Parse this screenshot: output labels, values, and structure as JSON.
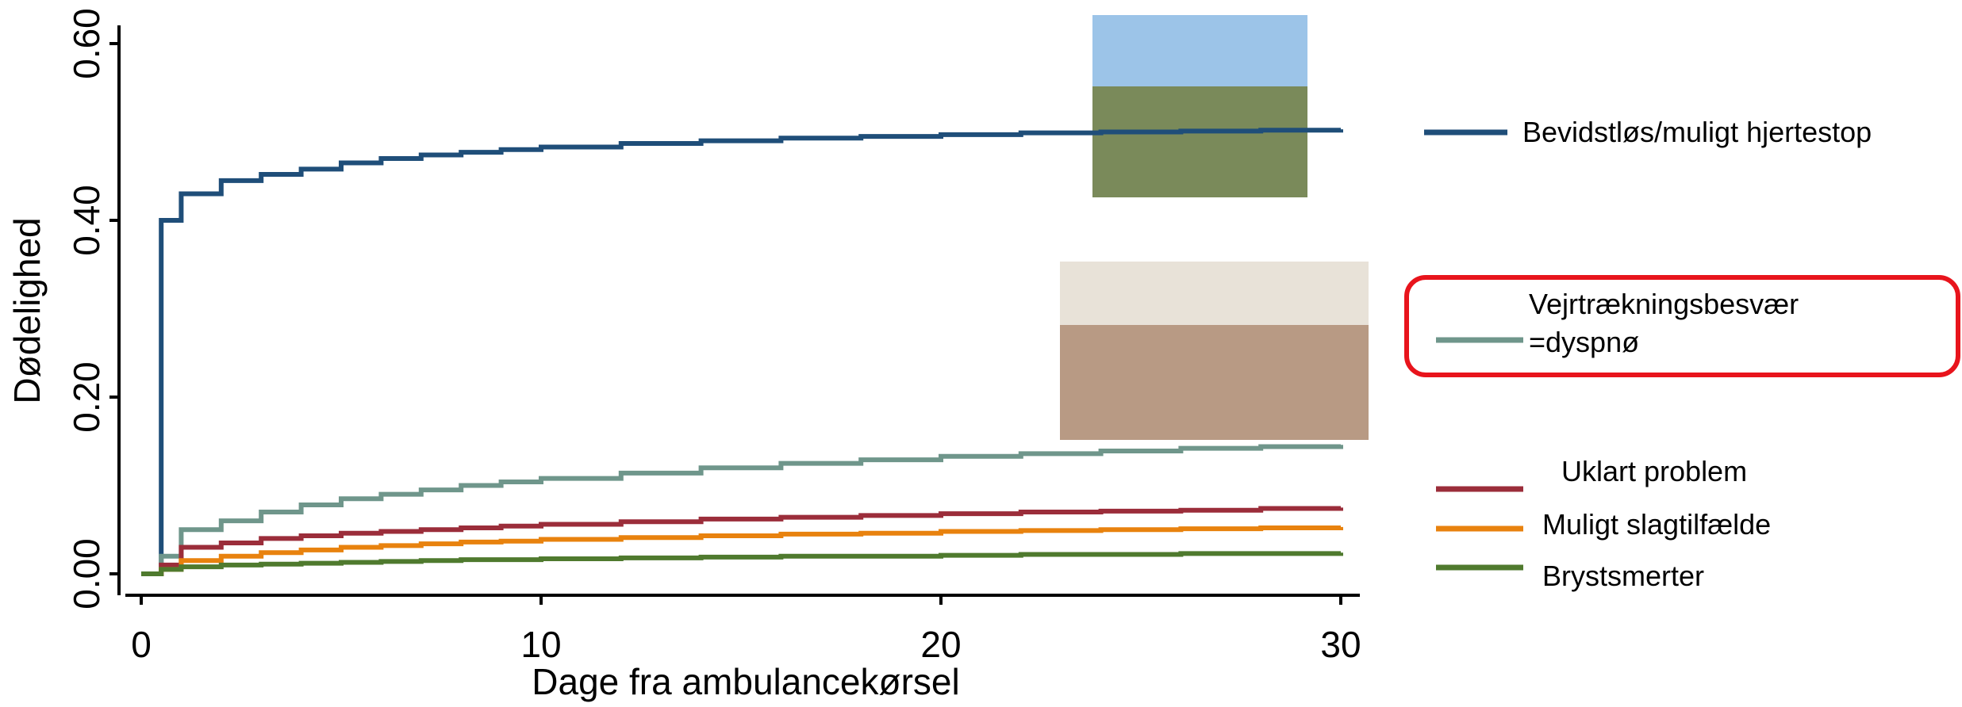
{
  "chart_data": {
    "type": "line",
    "step": true,
    "x_label": "Dage fra ambulancekørsel",
    "y_label": "Dødelighed",
    "x": [
      0,
      0.5,
      1,
      2,
      3,
      4,
      5,
      6,
      7,
      8,
      9,
      10,
      12,
      14,
      16,
      18,
      20,
      22,
      24,
      26,
      28,
      30
    ],
    "series": [
      {
        "name": "Bevidstløs/muligt hjertestop",
        "color": "#1f4e79",
        "values": [
          0,
          0.4,
          0.43,
          0.445,
          0.452,
          0.458,
          0.465,
          0.47,
          0.474,
          0.477,
          0.48,
          0.483,
          0.487,
          0.49,
          0.493,
          0.495,
          0.497,
          0.499,
          0.5,
          0.501,
          0.502,
          0.503
        ]
      },
      {
        "name": "Vejrtrækningsbesvær =dyspnø",
        "color": "#6f968b",
        "values": [
          0,
          0.02,
          0.05,
          0.06,
          0.07,
          0.078,
          0.085,
          0.09,
          0.095,
          0.1,
          0.104,
          0.108,
          0.114,
          0.12,
          0.125,
          0.129,
          0.133,
          0.136,
          0.139,
          0.142,
          0.144,
          0.146
        ]
      },
      {
        "name": "Uklart problem",
        "color": "#9b2d3a",
        "values": [
          0,
          0.01,
          0.03,
          0.035,
          0.04,
          0.043,
          0.046,
          0.048,
          0.05,
          0.052,
          0.054,
          0.056,
          0.059,
          0.062,
          0.064,
          0.066,
          0.068,
          0.07,
          0.071,
          0.072,
          0.074,
          0.075
        ]
      },
      {
        "name": "Muligt slagtilfælde",
        "color": "#e8820e",
        "values": [
          0,
          0.005,
          0.015,
          0.02,
          0.024,
          0.027,
          0.03,
          0.032,
          0.034,
          0.036,
          0.037,
          0.039,
          0.041,
          0.043,
          0.045,
          0.046,
          0.048,
          0.049,
          0.05,
          0.051,
          0.052,
          0.053
        ]
      },
      {
        "name": "Brystsmerter",
        "color": "#4f7a2e",
        "values": [
          0,
          0.005,
          0.008,
          0.01,
          0.011,
          0.012,
          0.013,
          0.014,
          0.015,
          0.016,
          0.016,
          0.017,
          0.018,
          0.019,
          0.02,
          0.02,
          0.021,
          0.022,
          0.022,
          0.023,
          0.023,
          0.024
        ]
      }
    ],
    "xlim": [
      0,
      30
    ],
    "xticks": [
      0,
      10,
      20,
      30
    ],
    "ylim": [
      0,
      0.6
    ],
    "yticks": [
      {
        "value": 0,
        "label": "0.00"
      },
      {
        "value": 0.2,
        "label": "0.20"
      },
      {
        "value": 0.4,
        "label": "0.40"
      },
      {
        "value": 0.6,
        "label": "0.60"
      }
    ],
    "highlight_color": "#e8141c"
  }
}
